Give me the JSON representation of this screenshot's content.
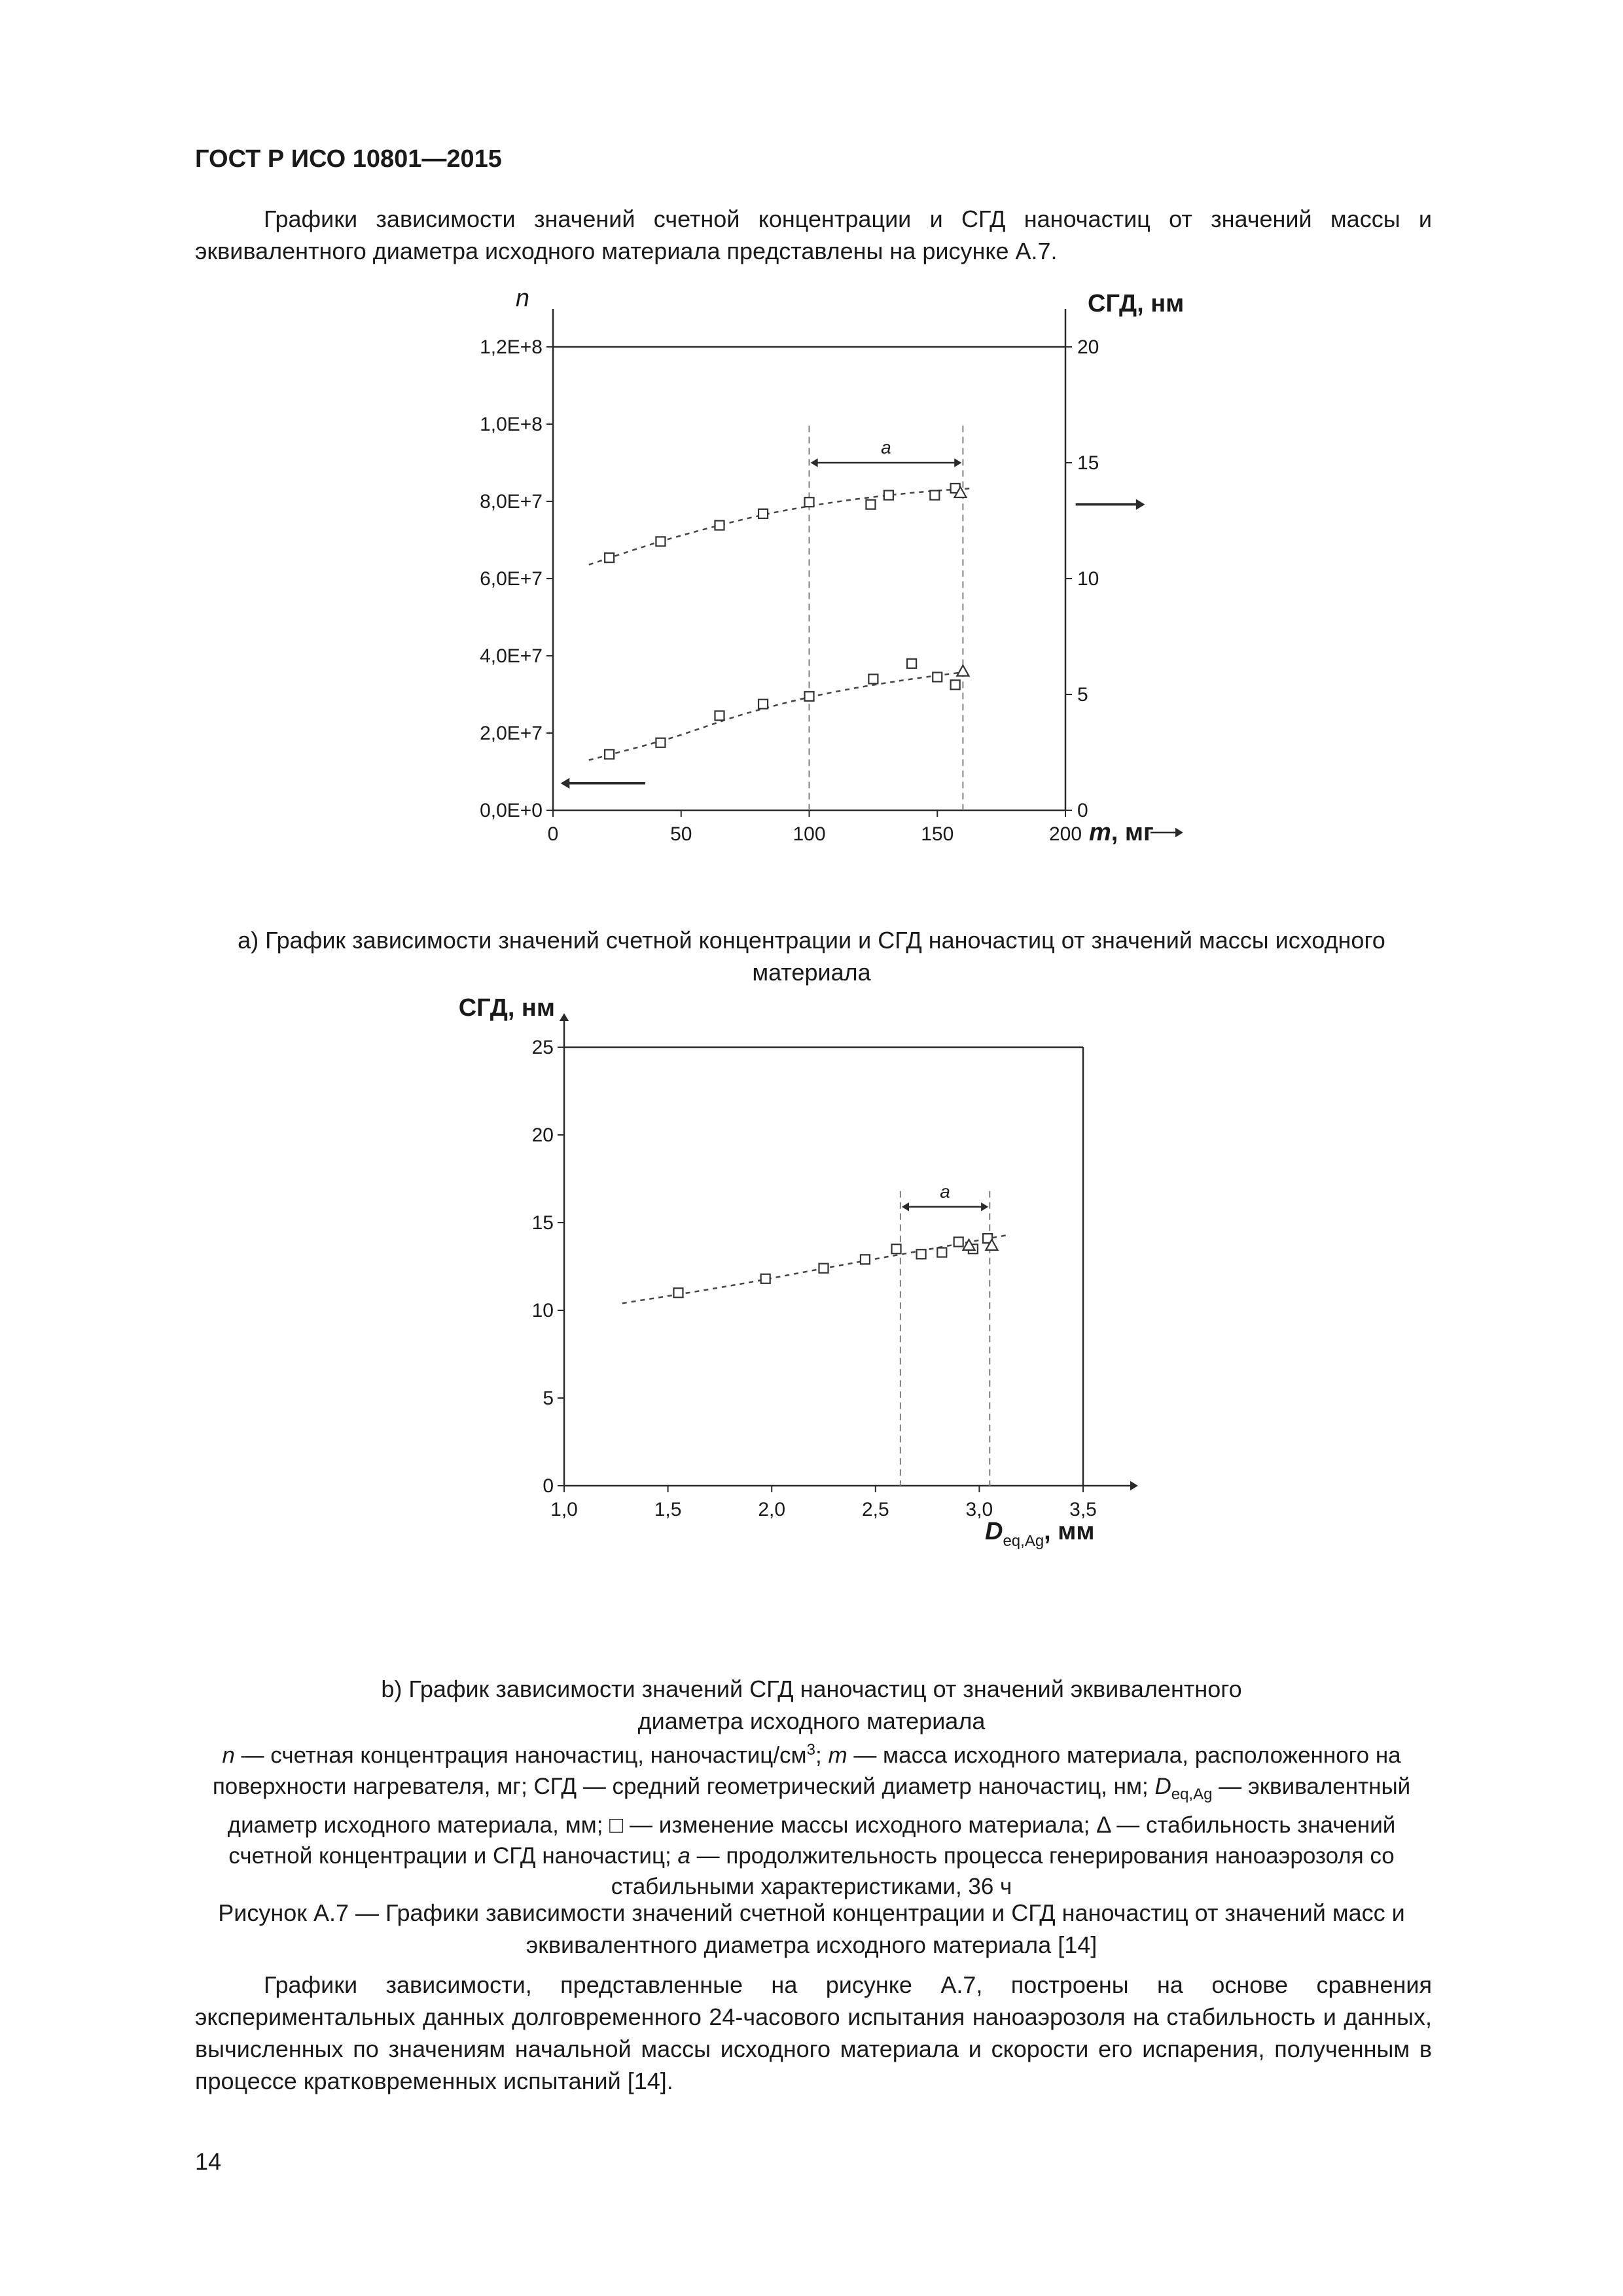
{
  "page": {
    "header": "ГОСТ Р ИСО 10801—2015",
    "page_number": "14",
    "paragraph1": "Графики зависимости значений счетной концентрации и СГД наночастиц от значений массы и эквивалентного диаметра исходного материала представлены на рисунке А.7.",
    "caption_a_line1": "a) График зависимости значений счетной концентрации и СГД наночастиц от значений массы исходного",
    "caption_a_line2": "материала",
    "caption_b_line1": "b) График зависимости значений СГД наночастиц от значений эквивалентного",
    "caption_b_line2": "диаметра исходного материала",
    "figure_caption_line1": "Рисунок А.7 — Графики зависимости значений счетной концентрации и СГД наночастиц от значений масс и",
    "figure_caption_line2": "эквивалентного диаметра исходного материала [14]",
    "paragraph2": "Графики зависимости, представленные на рисунке А.7, построены на основе сравнения экспериментальных данных долговременного 24-часового испытания наноаэрозоля на стабильность и данных, вычисленных по значениям начальной массы исходного материала и скорости его испарения, полученным в процессе кратковременных испытаний [14]."
  },
  "legend": {
    "n_sym": "n",
    "n_text": " — счетная концентрация наночастиц, наночастиц/см",
    "n_sup": "3",
    "n_sep": "; ",
    "m_sym": "m",
    "m_text": " — масса исходного материала, расположенного на поверхности нагревателя, мг; СГД — средний геометрический диаметр наночастиц, нм; ",
    "d_sym": "D",
    "d_sub": "eq,Ag",
    "d_text": " — эквивалентный диаметр исходного материала, мм; □ — изменение массы исходного материала; ",
    "delta_sym": "Δ",
    "delta_text": " — стабильность значений счетной концентрации и СГД наночастиц; ",
    "a_sym": "a",
    "a_text": " — продолжительность процесса генерирования наноаэрозоля со стабильными характеристиками, 36 ч"
  },
  "chart_data": [
    {
      "id": "chart-a",
      "label": "a",
      "type": "scatter",
      "x_axis": {
        "label_var": "m",
        "label_unit": ", мг",
        "min": 0,
        "max": 200,
        "ticks": [
          0,
          50,
          100,
          150,
          200
        ],
        "tick_labels": [
          "0",
          "50",
          "100",
          "150",
          "200"
        ]
      },
      "left_axis": {
        "label": "n",
        "min": 0,
        "max": 120000000,
        "ticks": [
          0,
          20000000,
          40000000,
          60000000,
          80000000,
          100000000,
          120000000
        ],
        "tick_labels": [
          "0,0E+0",
          "2,0E+7",
          "4,0E+7",
          "6,0E+7",
          "8,0E+7",
          "1,0E+8",
          "1,2E+8"
        ]
      },
      "right_axis": {
        "label": "СГД, нм",
        "min": 0,
        "max": 20,
        "ticks": [
          0,
          5,
          10,
          15,
          20
        ],
        "tick_labels": [
          "0",
          "5",
          "10",
          "15",
          "20"
        ]
      },
      "series": [
        {
          "name": "concentration-mass-change",
          "axis": "left",
          "marker": "square",
          "points": [
            [
              22,
              14500000
            ],
            [
              42,
              17500000
            ],
            [
              65,
              24500000
            ],
            [
              82,
              27500000
            ],
            [
              100,
              29500000
            ],
            [
              125,
              34000000
            ],
            [
              140,
              38000000
            ],
            [
              150,
              34500000
            ],
            [
              157,
              32500000
            ]
          ],
          "trend": [
            [
              14,
              13000000
            ],
            [
              45,
              18500000
            ],
            [
              75,
              25000000
            ],
            [
              105,
              30000000
            ],
            [
              135,
              33500000
            ],
            [
              163,
              36000000
            ]
          ]
        },
        {
          "name": "concentration-stability",
          "axis": "left",
          "marker": "triangle",
          "points": [
            [
              160,
              36000000
            ]
          ]
        },
        {
          "name": "sgd-mass-change",
          "axis": "right",
          "marker": "square",
          "points": [
            [
              22,
              10.9
            ],
            [
              42,
              11.6
            ],
            [
              65,
              12.3
            ],
            [
              82,
              12.8
            ],
            [
              100,
              13.3
            ],
            [
              124,
              13.2
            ],
            [
              131,
              13.6
            ],
            [
              149,
              13.6
            ],
            [
              157,
              13.9
            ]
          ],
          "trend": [
            [
              14,
              10.6
            ],
            [
              45,
              11.7
            ],
            [
              80,
              12.7
            ],
            [
              110,
              13.3
            ],
            [
              140,
              13.7
            ],
            [
              164,
              13.9
            ]
          ]
        },
        {
          "name": "sgd-stability",
          "axis": "right",
          "marker": "triangle",
          "points": [
            [
              159,
              13.7
            ]
          ]
        }
      ],
      "stability_region": {
        "label": "a",
        "x1": 100,
        "x2": 160,
        "top": 16.6,
        "arrow_y": 15.0
      },
      "axis_pointers": [
        {
          "axis": "right",
          "y": 13.2,
          "x_from": 204,
          "x_to": 229,
          "dir": "right"
        },
        {
          "axis": "left",
          "y": 7000000,
          "x_from": 36,
          "x_to": 5,
          "dir": "left"
        }
      ]
    },
    {
      "id": "chart-b",
      "label": "b",
      "type": "scatter",
      "x_axis": {
        "label_var": "D",
        "label_sub": "eq,Ag",
        "label_unit": ", мм",
        "min": 1.0,
        "max": 3.5,
        "ticks": [
          1.0,
          1.5,
          2.0,
          2.5,
          3.0,
          3.5
        ],
        "tick_labels": [
          "1,0",
          "1,5",
          "2,0",
          "2,5",
          "3,0",
          "3,5"
        ]
      },
      "left_axis": {
        "label": "СГД, нм",
        "min": 0,
        "max": 25,
        "ticks": [
          0,
          5,
          10,
          15,
          20,
          25
        ],
        "tick_labels": [
          "0",
          "5",
          "10",
          "15",
          "20",
          "25"
        ]
      },
      "series": [
        {
          "name": "sgd-mass-change",
          "marker": "square",
          "points": [
            [
              1.55,
              11.0
            ],
            [
              1.97,
              11.8
            ],
            [
              2.25,
              12.4
            ],
            [
              2.45,
              12.9
            ],
            [
              2.6,
              13.5
            ],
            [
              2.72,
              13.2
            ],
            [
              2.82,
              13.3
            ],
            [
              2.9,
              13.9
            ],
            [
              2.97,
              13.5
            ],
            [
              3.04,
              14.1
            ]
          ],
          "trend": [
            [
              1.28,
              10.4
            ],
            [
              1.8,
              11.4
            ],
            [
              2.3,
              12.5
            ],
            [
              2.72,
              13.4
            ],
            [
              3.14,
              14.3
            ]
          ]
        },
        {
          "name": "sgd-stability",
          "marker": "triangle",
          "points": [
            [
              2.95,
              13.7
            ],
            [
              3.06,
              13.7
            ]
          ]
        }
      ],
      "stability_region": {
        "label": "a",
        "x1": 2.62,
        "x2": 3.05,
        "top": 16.8,
        "arrow_y": 15.9
      }
    }
  ]
}
